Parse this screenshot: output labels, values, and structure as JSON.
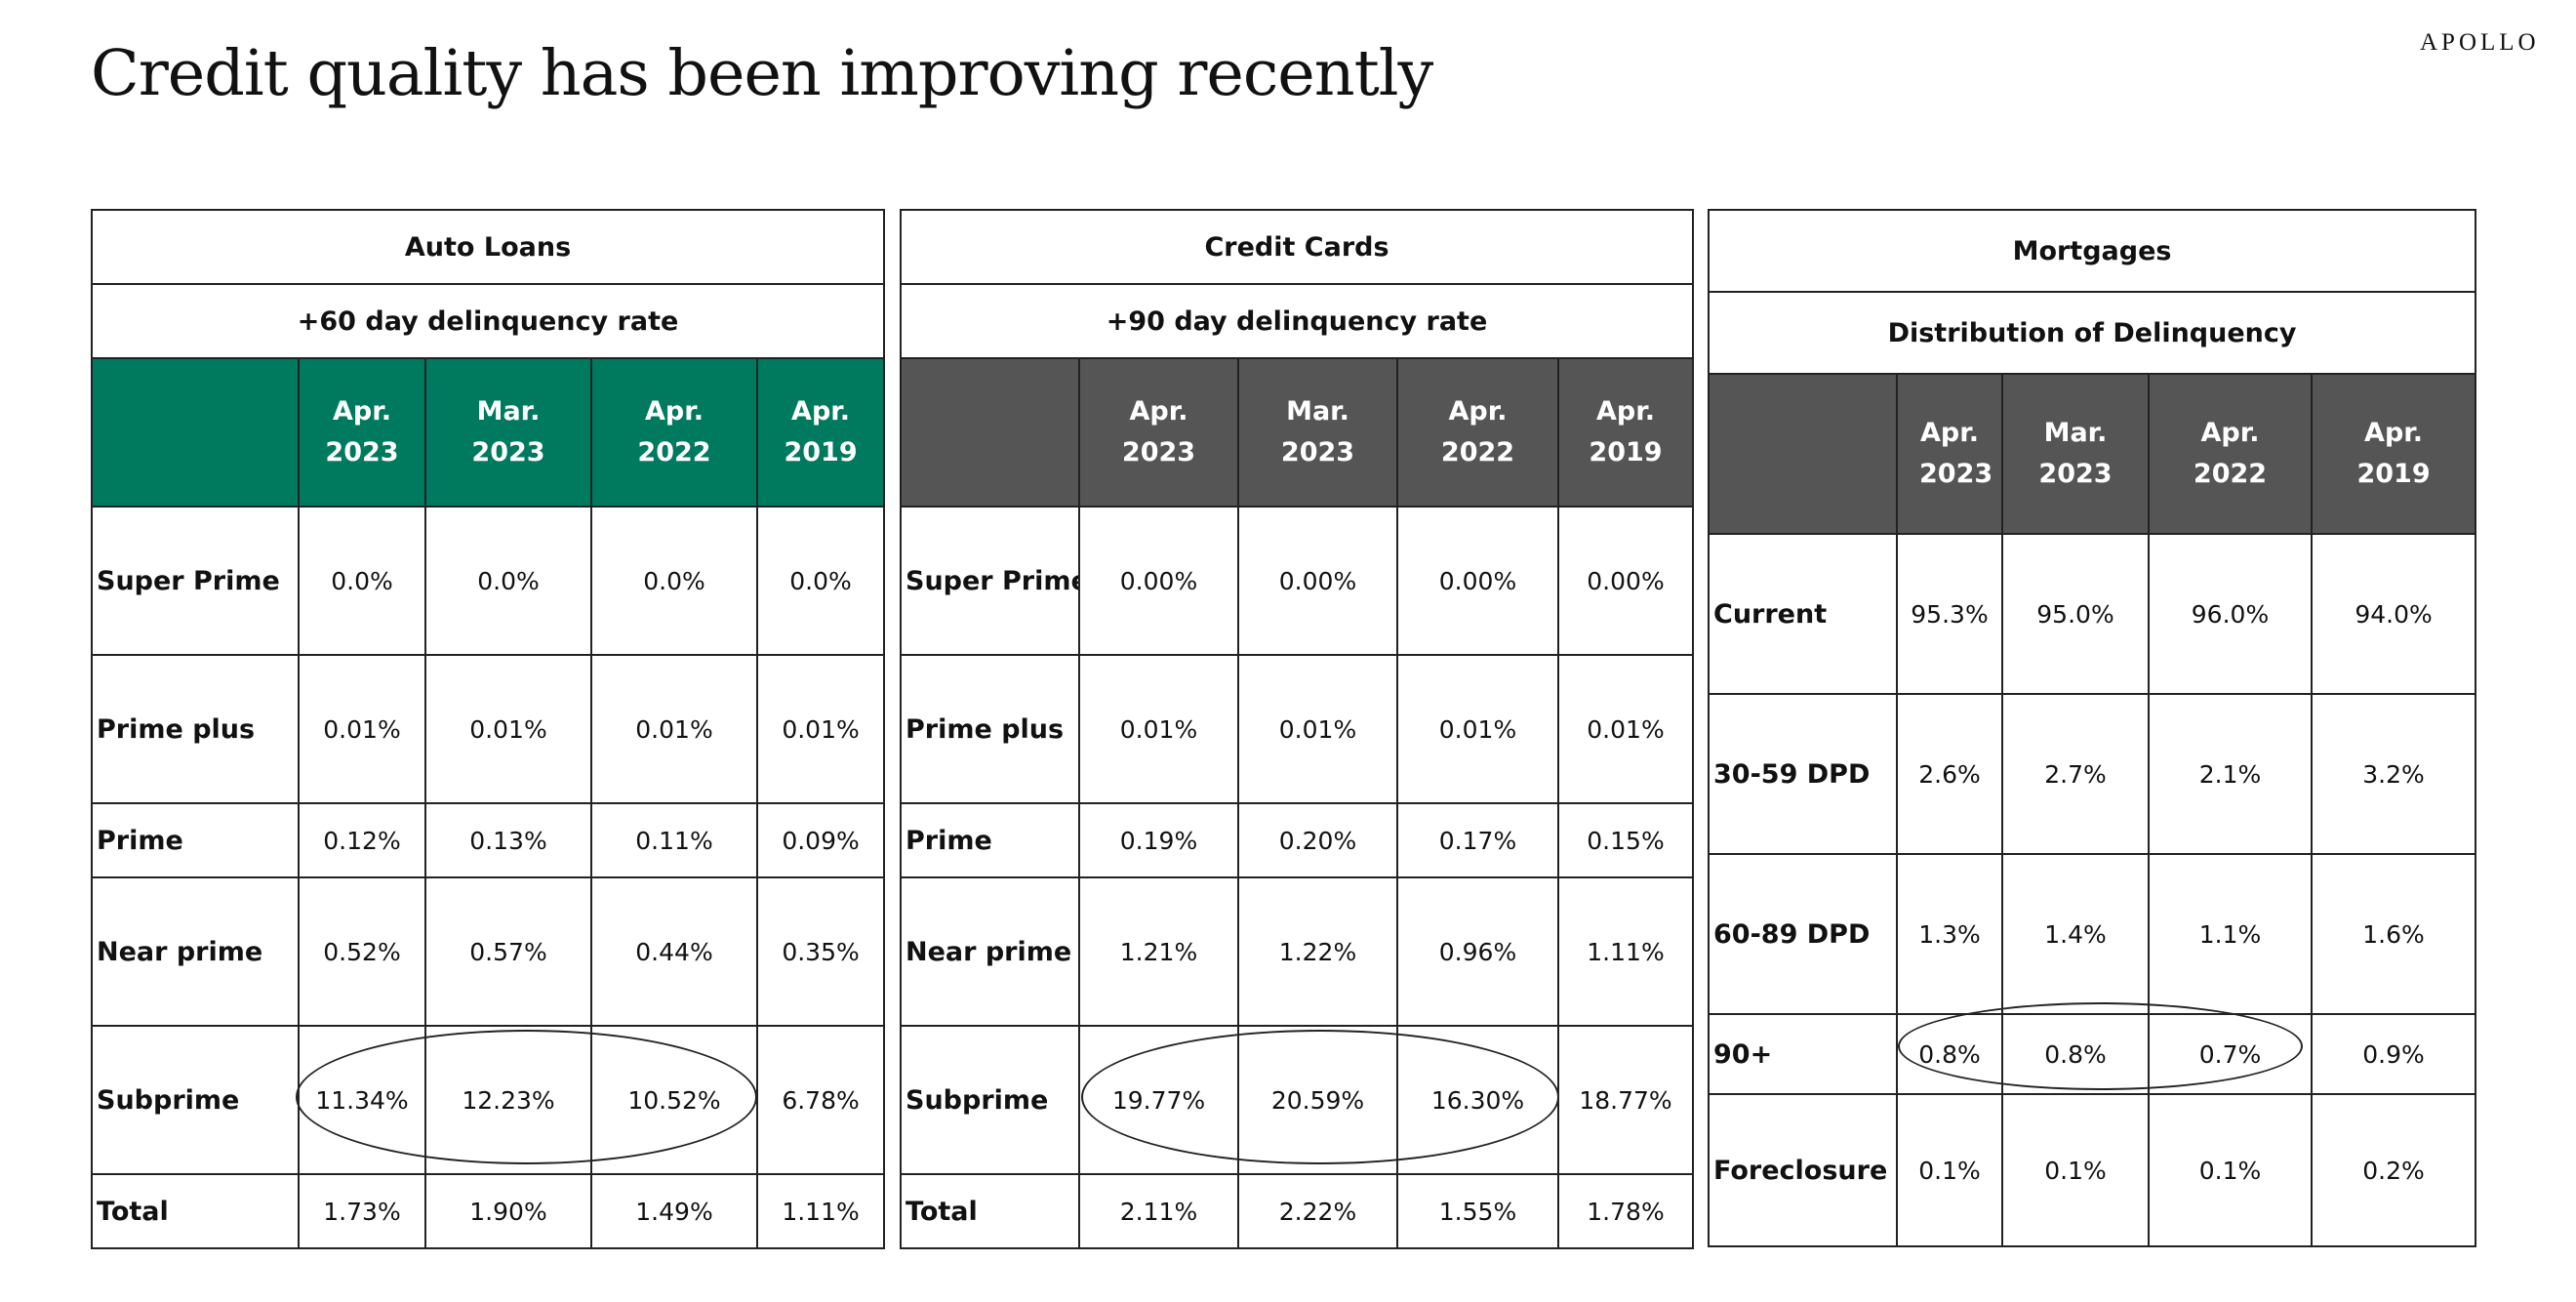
{
  "page": {
    "title": "Credit quality has been improving recently",
    "brand": "APOLLO"
  },
  "chart_data": [
    {
      "type": "table",
      "title": "Auto Loans",
      "subtitle": "+60 day delinquency rate",
      "header_color": "#007a5e",
      "columns": [
        "Apr. 2023",
        "Mar. 2023",
        "Apr. 2022",
        "Apr. 2019"
      ],
      "rows": [
        {
          "label": "Super Prime",
          "values": [
            "0.0%",
            "0.0%",
            "0.0%",
            "0.0%"
          ]
        },
        {
          "label": "Prime plus",
          "values": [
            "0.01%",
            "0.01%",
            "0.01%",
            "0.01%"
          ]
        },
        {
          "label": "Prime",
          "values": [
            "0.12%",
            "0.13%",
            "0.11%",
            "0.09%"
          ]
        },
        {
          "label": "Near prime",
          "values": [
            "0.52%",
            "0.57%",
            "0.44%",
            "0.35%"
          ]
        },
        {
          "label": "Subprime",
          "values": [
            "11.34%",
            "12.23%",
            "10.52%",
            "6.78%"
          ]
        },
        {
          "label": "Total",
          "values": [
            "1.73%",
            "1.90%",
            "1.49%",
            "1.11%"
          ]
        }
      ],
      "circled": {
        "row": "Subprime",
        "columns": [
          "Apr. 2023",
          "Mar. 2023",
          "Apr. 2022"
        ]
      }
    },
    {
      "type": "table",
      "title": "Credit Cards",
      "subtitle": "+90 day delinquency rate",
      "header_color": "#555555",
      "columns": [
        "Apr. 2023",
        "Mar. 2023",
        "Apr. 2022",
        "Apr. 2019"
      ],
      "rows": [
        {
          "label": "Super Prime",
          "values": [
            "0.00%",
            "0.00%",
            "0.00%",
            "0.00%"
          ]
        },
        {
          "label": "Prime plus",
          "values": [
            "0.01%",
            "0.01%",
            "0.01%",
            "0.01%"
          ]
        },
        {
          "label": "Prime",
          "values": [
            "0.19%",
            "0.20%",
            "0.17%",
            "0.15%"
          ]
        },
        {
          "label": "Near prime",
          "values": [
            "1.21%",
            "1.22%",
            "0.96%",
            "1.11%"
          ]
        },
        {
          "label": "Subprime",
          "values": [
            "19.77%",
            "20.59%",
            "16.30%",
            "18.77%"
          ]
        },
        {
          "label": "Total",
          "values": [
            "2.11%",
            "2.22%",
            "1.55%",
            "1.78%"
          ]
        }
      ],
      "circled": {
        "row": "Subprime",
        "columns": [
          "Apr. 2023",
          "Mar. 2023",
          "Apr. 2022"
        ]
      }
    },
    {
      "type": "table",
      "title": "Mortgages",
      "subtitle": "Distribution of Delinquency",
      "header_color": "#555555",
      "columns": [
        "Apr. 2023",
        "Mar. 2023",
        "Apr. 2022",
        "Apr. 2019"
      ],
      "rows": [
        {
          "label": "Current",
          "values": [
            "95.3%",
            "95.0%",
            "96.0%",
            "94.0%"
          ]
        },
        {
          "label": "30-59  DPD",
          "values": [
            "2.6%",
            "2.7%",
            "2.1%",
            "3.2%"
          ]
        },
        {
          "label": "60-89  DPD",
          "values": [
            "1.3%",
            "1.4%",
            "1.1%",
            "1.6%"
          ]
        },
        {
          "label": "90+",
          "values": [
            "0.8%",
            "0.8%",
            "0.7%",
            "0.9%"
          ]
        },
        {
          "label": "Foreclosure",
          "values": [
            "0.1%",
            "0.1%",
            "0.1%",
            "0.2%"
          ]
        }
      ],
      "circled": {
        "row": "90+",
        "columns": [
          "Apr. 2023",
          "Mar. 2023",
          "Apr. 2022"
        ]
      }
    }
  ]
}
